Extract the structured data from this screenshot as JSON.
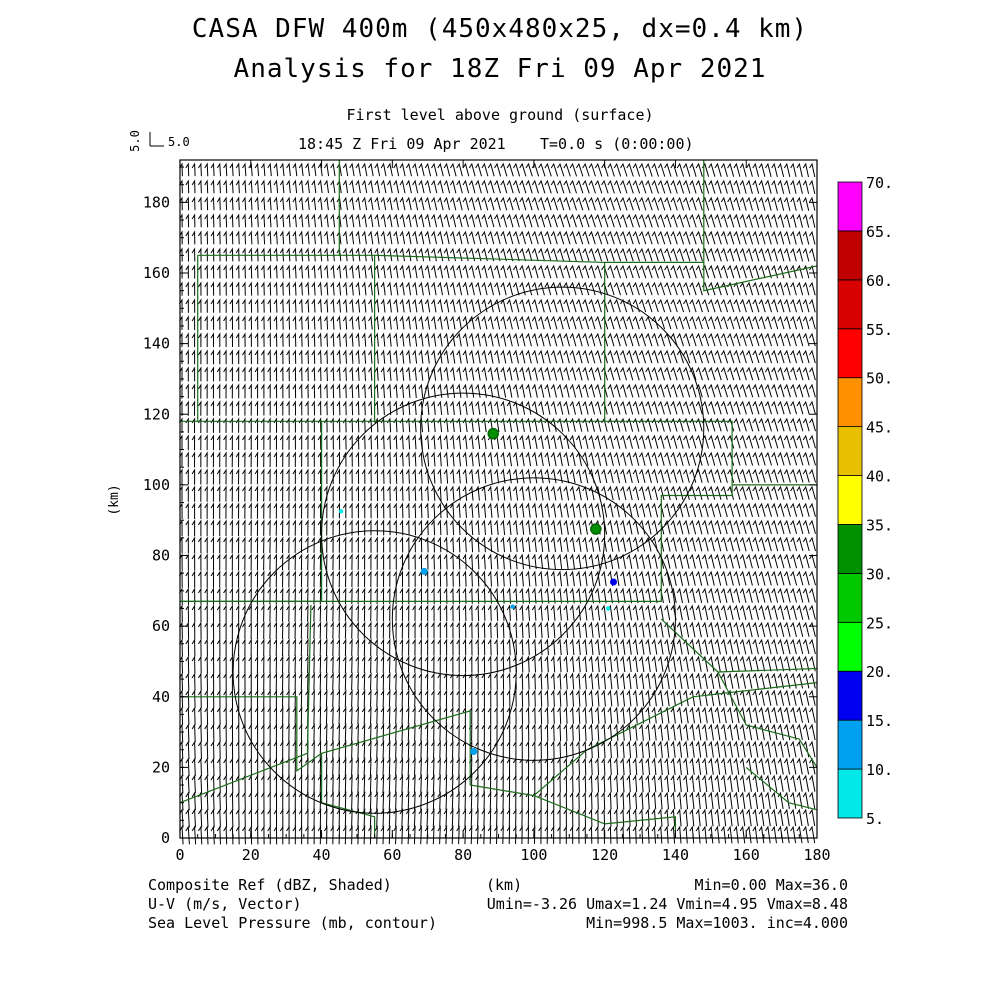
{
  "header": {
    "title_line1": "CASA DFW 400m (450x480x25, dx=0.4 km)",
    "title_line2": "Analysis for 18Z Fri 09 Apr 2021",
    "subtitle": "First level above ground (surface)",
    "timestamp": "18:45 Z Fri 09 Apr 2021",
    "runtime": "T=0.0 s (0:00:00)",
    "ref_vector_label": "5.0"
  },
  "footer": {
    "left": [
      "Composite Ref (dBZ, Shaded)",
      "U-V (m/s, Vector)",
      "Sea Level Pressure (mb, contour)"
    ],
    "center": "(km)",
    "right": [
      "Min=0.00 Max=36.0",
      "Umin=-3.26 Umax=1.24 Vmin=4.95 Vmax=8.48",
      "Min=998.5 Max=1003. inc=4.000"
    ]
  },
  "chart_data": {
    "type": "map",
    "xlabel": "(km)",
    "ylabel": "(km)",
    "xlim": [
      0,
      180
    ],
    "ylim": [
      0,
      192
    ],
    "x_ticks": [
      0,
      20,
      40,
      60,
      80,
      100,
      120,
      140,
      160,
      180
    ],
    "y_ticks": [
      0,
      20,
      40,
      60,
      80,
      100,
      120,
      140,
      160,
      180
    ],
    "colorbar": {
      "levels": [
        "5.",
        "10.",
        "15.",
        "20.",
        "25.",
        "30.",
        "35.",
        "40.",
        "45.",
        "50.",
        "55.",
        "60.",
        "65.",
        "70."
      ],
      "colors": [
        "#00e8e8",
        "#00a0f0",
        "#0000f0",
        "#00ff00",
        "#00c800",
        "#009000",
        "#ffff00",
        "#e8c000",
        "#ff9000",
        "#ff0000",
        "#d80000",
        "#c00000",
        "#ff00ff"
      ]
    },
    "radar_rings": [
      {
        "cx": 55,
        "cy": 47,
        "r": 40
      },
      {
        "cx": 80,
        "cy": 86,
        "r": 40
      },
      {
        "cx": 108,
        "cy": 116,
        "r": 40
      },
      {
        "cx": 100,
        "cy": 62,
        "r": 40
      }
    ],
    "echoes": [
      {
        "x": 88.5,
        "y": 114.5,
        "dbz": 32
      },
      {
        "x": 117.5,
        "y": 87.5,
        "dbz": 30
      },
      {
        "x": 122.5,
        "y": 72.5,
        "dbz": 15
      },
      {
        "x": 45.5,
        "y": 92.5,
        "dbz": 8
      },
      {
        "x": 69,
        "y": 75.5,
        "dbz": 12
      },
      {
        "x": 94,
        "y": 65.5,
        "dbz": 10
      },
      {
        "x": 121,
        "y": 65,
        "dbz": 8
      },
      {
        "x": 83,
        "y": 24.5,
        "dbz": 12
      }
    ],
    "wind": {
      "umin": -3.26,
      "umax": 1.24,
      "vmin": 4.95,
      "vmax": 8.48,
      "unit": "m/s"
    },
    "counties": [
      [
        [
          0,
          118
        ],
        [
          40,
          118
        ],
        [
          40,
          67
        ],
        [
          0,
          67
        ]
      ],
      [
        [
          5,
          165
        ],
        [
          5,
          118
        ]
      ],
      [
        [
          5,
          165
        ],
        [
          45,
          165
        ],
        [
          45,
          192
        ]
      ],
      [
        [
          45,
          165
        ],
        [
          55,
          165
        ],
        [
          55,
          118
        ]
      ],
      [
        [
          55,
          165
        ],
        [
          120,
          163
        ],
        [
          120,
          118
        ]
      ],
      [
        [
          120,
          163
        ],
        [
          148,
          163
        ],
        [
          148,
          192
        ]
      ],
      [
        [
          148,
          163
        ],
        [
          148,
          155
        ],
        [
          180,
          162
        ]
      ],
      [
        [
          40,
          118
        ],
        [
          156,
          118
        ],
        [
          156,
          100
        ]
      ],
      [
        [
          156,
          100
        ],
        [
          180,
          100
        ]
      ],
      [
        [
          156,
          100
        ],
        [
          156,
          97
        ],
        [
          136,
          97
        ],
        [
          136,
          67
        ],
        [
          0,
          67
        ]
      ],
      [
        [
          136,
          62
        ],
        [
          152,
          47
        ],
        [
          180,
          48
        ]
      ],
      [
        [
          0,
          40
        ],
        [
          33,
          40
        ],
        [
          33,
          19
        ],
        [
          40,
          24
        ],
        [
          82,
          36
        ],
        [
          82,
          15
        ],
        [
          100,
          12
        ],
        [
          115,
          25
        ],
        [
          145,
          40
        ],
        [
          180,
          44
        ]
      ],
      [
        [
          0,
          10
        ],
        [
          36,
          24
        ],
        [
          37,
          66
        ]
      ],
      [
        [
          40,
          24
        ],
        [
          40,
          10
        ],
        [
          55,
          6
        ],
        [
          55,
          0
        ]
      ],
      [
        [
          100,
          12
        ],
        [
          120,
          4
        ],
        [
          140,
          6
        ],
        [
          140,
          0
        ]
      ],
      [
        [
          160,
          20
        ],
        [
          172,
          10
        ],
        [
          180,
          8
        ]
      ],
      [
        [
          152,
          47
        ],
        [
          160,
          32
        ],
        [
          175,
          28
        ],
        [
          180,
          20
        ]
      ]
    ]
  }
}
